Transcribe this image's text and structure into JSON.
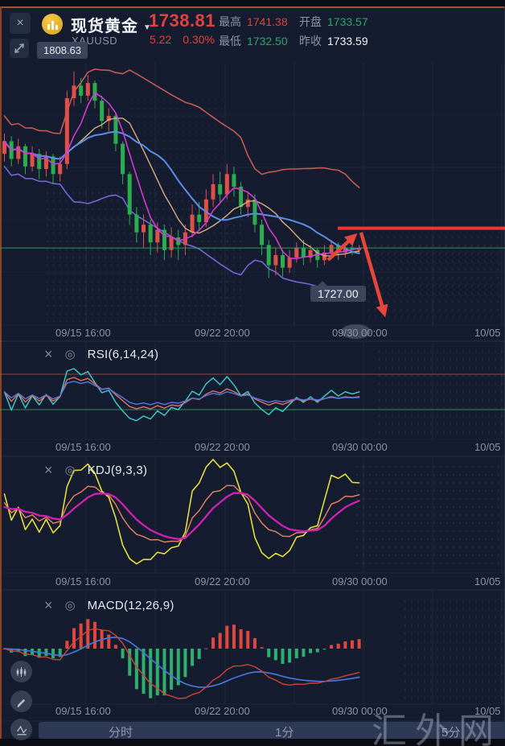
{
  "icons": {
    "close": "×",
    "settings": "◎",
    "caret": "▼"
  },
  "header": {
    "instrument": {
      "name": "现货黄金",
      "symbol": "XAUUSD"
    },
    "price": {
      "last": "1738.81",
      "change": "5.22",
      "change_pct": "0.30%"
    },
    "stats": [
      {
        "label": "最高",
        "value": "1741.38",
        "color": "red"
      },
      {
        "label": "最低",
        "value": "1732.50",
        "color": "green"
      },
      {
        "label": "开盘",
        "value": "1733.57",
        "color": "green"
      },
      {
        "label": "昨收",
        "value": "1733.59",
        "color": "white"
      }
    ],
    "range_high_label": "1808.63"
  },
  "time_axis": [
    "09/15 16:00",
    "09/22 20:00",
    "09/30 00:00",
    "10/05"
  ],
  "indicators": {
    "rsi": "RSI(6,14,24)",
    "kdj": "KDJ(9,3,3)",
    "macd": "MACD(12,26,9)"
  },
  "annotations": {
    "low_label": "1727.00"
  },
  "tabs": [
    {
      "label": "分时"
    },
    {
      "label": "1分"
    },
    {
      "label": "5分"
    }
  ],
  "watermark": "汇外网",
  "colors": {
    "background": "#151c2f",
    "accent_red": "#e2413c",
    "accent_green": "#2aa964",
    "candle_up": "#e0504a",
    "candle_down": "#2bad4f",
    "drawn_line_red": "#f4342e",
    "current_price_green": "#2fa85e",
    "tabbar_bg": "#2d3a55",
    "label_gray": "#8b93a6",
    "gold_coin": "#e8b125"
  },
  "chart_data": [
    {
      "type": "candlestick",
      "panel": "main",
      "symbol": "XAUUSD",
      "y_range": [
        1708,
        1812
      ],
      "candles": [
        [
          1776,
          1784,
          1773,
          1781
        ],
        [
          1781,
          1783,
          1771,
          1774
        ],
        [
          1774,
          1782,
          1772,
          1779
        ],
        [
          1779,
          1780,
          1768,
          1771
        ],
        [
          1771,
          1779,
          1769,
          1776
        ],
        [
          1776,
          1778,
          1766,
          1770
        ],
        [
          1770,
          1777,
          1767,
          1775
        ],
        [
          1775,
          1776,
          1764,
          1768
        ],
        [
          1768,
          1775,
          1765,
          1772
        ],
        [
          1772,
          1801,
          1770,
          1798
        ],
        [
          1798,
          1808.6,
          1795,
          1803
        ],
        [
          1803,
          1806,
          1796,
          1799
        ],
        [
          1799,
          1807,
          1797,
          1804
        ],
        [
          1804,
          1805,
          1794,
          1797
        ],
        [
          1797,
          1799,
          1786,
          1789
        ],
        [
          1789,
          1794,
          1785,
          1791
        ],
        [
          1791,
          1792,
          1777,
          1780
        ],
        [
          1780,
          1781,
          1764,
          1768
        ],
        [
          1768,
          1769,
          1748,
          1752
        ],
        [
          1752,
          1755,
          1741,
          1745
        ],
        [
          1745,
          1752,
          1739,
          1748
        ],
        [
          1748,
          1750,
          1736,
          1741
        ],
        [
          1741,
          1749,
          1737,
          1746
        ],
        [
          1746,
          1748,
          1734,
          1738
        ],
        [
          1738,
          1747,
          1735,
          1743
        ],
        [
          1743,
          1746,
          1734,
          1740
        ],
        [
          1740,
          1748,
          1736,
          1745
        ],
        [
          1745,
          1756,
          1743,
          1752
        ],
        [
          1752,
          1757,
          1746,
          1749
        ],
        [
          1749,
          1762,
          1747,
          1758
        ],
        [
          1758,
          1768,
          1755,
          1764
        ],
        [
          1764,
          1769,
          1757,
          1760
        ],
        [
          1760,
          1772,
          1758,
          1768
        ],
        [
          1768,
          1771,
          1759,
          1763
        ],
        [
          1763,
          1765,
          1752,
          1755
        ],
        [
          1755,
          1761,
          1751,
          1758
        ],
        [
          1758,
          1760,
          1745,
          1748
        ],
        [
          1748,
          1750,
          1736,
          1740
        ],
        [
          1740,
          1742,
          1727,
          1732
        ],
        [
          1732,
          1739,
          1728,
          1736
        ],
        [
          1736,
          1738,
          1727.5,
          1731
        ],
        [
          1731,
          1738,
          1729,
          1735
        ],
        [
          1735,
          1741,
          1733,
          1739
        ],
        [
          1739,
          1742,
          1732,
          1735
        ],
        [
          1735,
          1740,
          1733,
          1738
        ],
        [
          1738,
          1739,
          1731,
          1734
        ],
        [
          1734,
          1740,
          1732,
          1737
        ],
        [
          1737,
          1742,
          1735,
          1740
        ],
        [
          1740,
          1741,
          1734,
          1737
        ],
        [
          1737,
          1741,
          1735,
          1739
        ],
        [
          1739,
          1740.5,
          1736,
          1738
        ],
        [
          1738,
          1740,
          1736.5,
          1738.8
        ]
      ],
      "overlays": [
        {
          "name": "MA5",
          "period": 5,
          "color": "#d23ad2",
          "width": 1.6
        },
        {
          "name": "MA10",
          "period": 10,
          "color": "#d8ae80",
          "width": 1.4
        },
        {
          "name": "MA15",
          "period": 15,
          "color": "#5b8ee6",
          "width": 2
        },
        {
          "name": "BOLL_UPPER",
          "color": "#c65953",
          "width": 1.6
        },
        {
          "name": "BOLL_LOWER",
          "color": "#7666d6",
          "width": 1.6
        }
      ],
      "drawn_annotations": [
        {
          "type": "hline",
          "price": 1746.6,
          "color": "#f4342e",
          "width": 4,
          "note": "resistance line"
        },
        {
          "type": "hline",
          "price": 1738.8,
          "color": "#2fa85e",
          "width": 1,
          "note": "last price line"
        },
        {
          "type": "arrow",
          "dir": "up",
          "color": "#e8453c"
        },
        {
          "type": "arrow",
          "dir": "down",
          "color": "#e8453c"
        },
        {
          "type": "label",
          "text": "1727.00",
          "price": 1727
        }
      ]
    },
    {
      "type": "line",
      "panel": "rsi",
      "indicator": "RSI",
      "params": [
        6,
        14,
        24
      ],
      "colors": [
        "#3ed0cc",
        "#e0706a",
        "#5577d8"
      ],
      "y_range": [
        0,
        100
      ],
      "ref_lines": [
        {
          "value": 70,
          "color": "#a34b4b"
        },
        {
          "value": 30,
          "color": "#2f9e5e"
        }
      ]
    },
    {
      "type": "line",
      "panel": "kdj",
      "indicator": "KDJ",
      "params": [
        9,
        3,
        3
      ],
      "colors": {
        "k": "#dd7f62",
        "d": "#cf22b5",
        "j": "#e3dd3a"
      },
      "y_range": [
        -25,
        110
      ]
    },
    {
      "type": "macd",
      "panel": "macd",
      "indicator": "MACD",
      "params": [
        12,
        26,
        9
      ],
      "colors": {
        "dif": "#cf4338",
        "dea": "#4576d8",
        "hist_pos": "#e0483f",
        "hist_neg": "#2fae6e"
      }
    }
  ]
}
